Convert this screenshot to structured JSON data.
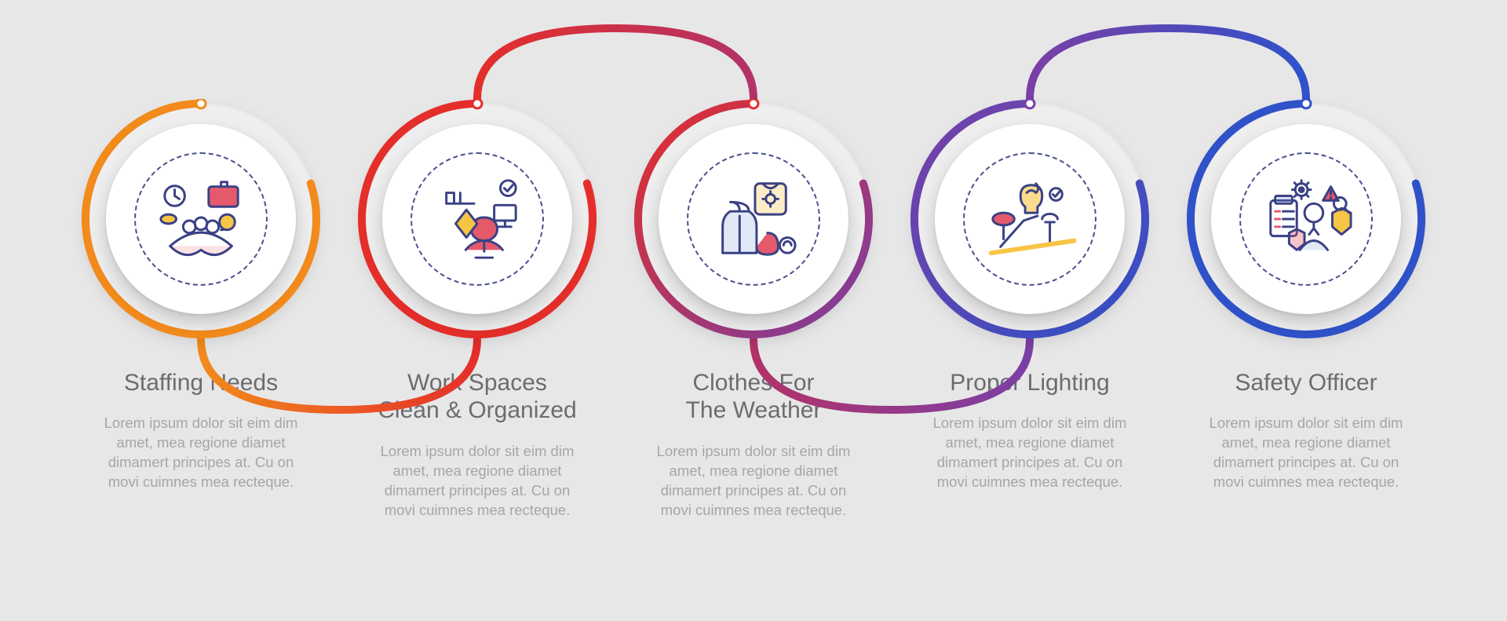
{
  "type": "infographic",
  "background_color": "#e7e7e8",
  "disc": {
    "outer_diameter": 298,
    "inner_diameter": 242,
    "outer_bg": "#eeeeef",
    "inner_bg": "#ffffff",
    "dashed_border_color": "#4a508c",
    "dashed_border_diameter": 170
  },
  "arc": {
    "stroke_width": 10,
    "r": 147,
    "gap_start_deg": -90,
    "gap_end_deg": -18
  },
  "typography": {
    "title_fontsize": 30,
    "title_color": "#6c6c70",
    "title_weight": 400,
    "body_fontsize": 18.5,
    "body_color": "#a6a6aa"
  },
  "connector": {
    "stroke_width": 10
  },
  "items": [
    {
      "title": "Staffing Needs",
      "body": "Lorem ipsum dolor sit eim dim amet, mea regione diamet dimamert principes at. Cu on movi cuimnes mea recteque.",
      "arc_color": "#f28a1c",
      "arc_gradient": null,
      "icon": "staffing"
    },
    {
      "title": "Work Spaces\nClean & Organized",
      "body": "Lorem ipsum dolor sit eim dim amet, mea regione diamet dimamert principes at. Cu on movi cuimnes mea recteque.",
      "arc_color": "#e42e2a",
      "arc_gradient": null,
      "icon": "workspace"
    },
    {
      "title": "Clothes For\nThe Weather",
      "body": "Lorem ipsum dolor sit eim dim amet, mea regione diamet dimamert principes at. Cu on movi cuimnes mea recteque.",
      "arc_color": null,
      "arc_gradient": [
        "#e42e2a",
        "#7a3fa5"
      ],
      "icon": "clothes"
    },
    {
      "title": "Proper Lighting",
      "body": "Lorem ipsum dolor sit eim dim amet, mea regione diamet dimamert principes at. Cu on movi cuimnes mea recteque.",
      "arc_color": null,
      "arc_gradient": [
        "#7a3fa5",
        "#2f52c9"
      ],
      "icon": "lighting"
    },
    {
      "title": "Safety Officer",
      "body": "Lorem ipsum dolor sit eim dim amet, mea regione diamet dimamert principes at. Cu on movi cuimnes mea recteque.",
      "arc_color": "#2f52c9",
      "arc_gradient": null,
      "icon": "officer"
    }
  ],
  "connectors": [
    {
      "from": 0,
      "to": 1,
      "half": "bottom",
      "gradient": [
        "#f28a1c",
        "#e42e2a"
      ]
    },
    {
      "from": 1,
      "to": 2,
      "half": "top",
      "gradient": [
        "#e42e2a",
        "#b23368"
      ]
    },
    {
      "from": 2,
      "to": 3,
      "half": "bottom",
      "gradient": [
        "#b23368",
        "#7a3fa5"
      ]
    },
    {
      "from": 3,
      "to": 4,
      "half": "top",
      "gradient": [
        "#7a3fa5",
        "#2f52c9"
      ]
    }
  ],
  "icon_palette": {
    "stroke": "#3a4184",
    "yellow": "#f6c545",
    "red": "#e45a6b",
    "blue": "#6a8fd9"
  }
}
